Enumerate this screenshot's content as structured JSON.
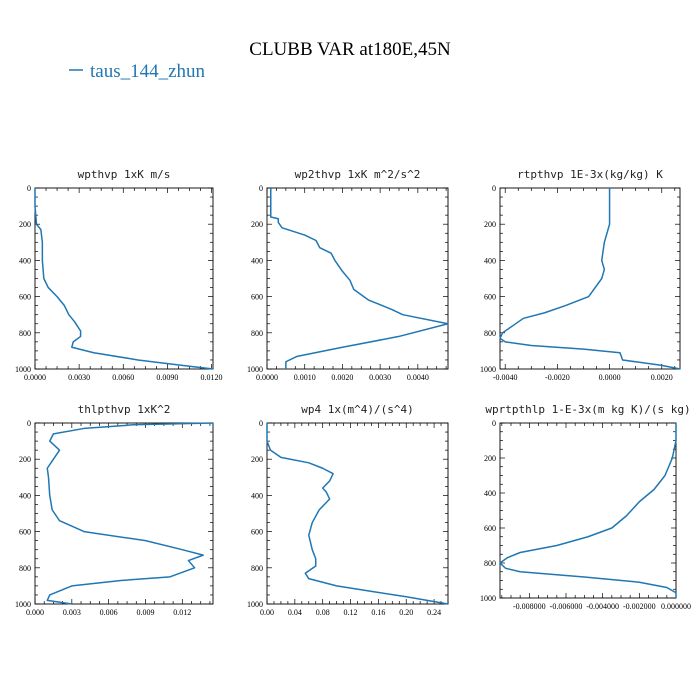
{
  "figure": {
    "title": "CLUBB VAR at180E,45N",
    "legend": {
      "label": "taus_144_zhun",
      "color": "#1f77b4"
    }
  },
  "chart_data": [
    {
      "type": "line",
      "title": "wpthvp  1xK m/s",
      "xlim": [
        0,
        0.0121
      ],
      "ylim": [
        1000,
        0
      ],
      "xticks": [
        "0.0000",
        "0.0030",
        "0.0060",
        "0.0090",
        "0.0120"
      ],
      "xtick_values": [
        0,
        0.003,
        0.006,
        0.009,
        0.012
      ],
      "yticks": [
        "0",
        "200",
        "400",
        "600",
        "800",
        "1000"
      ],
      "ytick_values": [
        0,
        200,
        400,
        600,
        800,
        1000
      ],
      "series": [
        {
          "values": [
            [
              0.0,
              0
            ],
            [
              0.0,
              100
            ],
            [
              0.0001,
              200
            ],
            [
              0.0004,
              230
            ],
            [
              0.0005,
              300
            ],
            [
              0.0005,
              400
            ],
            [
              0.0006,
              500
            ],
            [
              0.0009,
              550
            ],
            [
              0.0015,
              600
            ],
            [
              0.002,
              650
            ],
            [
              0.0023,
              700
            ],
            [
              0.0027,
              740
            ],
            [
              0.0031,
              790
            ],
            [
              0.0031,
              820
            ],
            [
              0.0026,
              850
            ],
            [
              0.0025,
              880
            ],
            [
              0.004,
              910
            ],
            [
              0.007,
              950
            ],
            [
              0.01,
              980
            ],
            [
              0.0121,
              1000
            ]
          ]
        }
      ]
    },
    {
      "type": "line",
      "title": "wp2thvp  1xK m^2/s^2",
      "xlim": [
        0,
        0.0048
      ],
      "ylim": [
        1000,
        0
      ],
      "xticks": [
        "0.0000",
        "0.0010",
        "0.0020",
        "0.0030",
        "0.0040"
      ],
      "xtick_values": [
        0,
        0.001,
        0.002,
        0.003,
        0.004
      ],
      "yticks": [
        "0",
        "200",
        "400",
        "600",
        "800",
        "1000"
      ],
      "ytick_values": [
        0,
        200,
        400,
        600,
        800,
        1000
      ],
      "series": [
        {
          "values": [
            [
              0.0001,
              0
            ],
            [
              0.0001,
              100
            ],
            [
              0.0001,
              160
            ],
            [
              0.0003,
              170
            ],
            [
              0.0003,
              190
            ],
            [
              0.0004,
              220
            ],
            [
              0.001,
              260
            ],
            [
              0.0013,
              290
            ],
            [
              0.0014,
              330
            ],
            [
              0.0017,
              360
            ],
            [
              0.0018,
              400
            ],
            [
              0.002,
              460
            ],
            [
              0.0022,
              510
            ],
            [
              0.0023,
              560
            ],
            [
              0.0027,
              620
            ],
            [
              0.0033,
              670
            ],
            [
              0.0036,
              700
            ],
            [
              0.0048,
              750
            ],
            [
              0.0035,
              820
            ],
            [
              0.002,
              880
            ],
            [
              0.0008,
              930
            ],
            [
              0.0005,
              960
            ],
            [
              0.0005,
              1000
            ]
          ]
        }
      ]
    },
    {
      "type": "line",
      "title": "rtpthvp  1E-3x(kg/kg) K",
      "xlim": [
        -0.0042,
        0.0027
      ],
      "ylim": [
        1000,
        0
      ],
      "xticks": [
        "-0.0040",
        "-0.0020",
        "0.0000",
        "0.0020"
      ],
      "xtick_values": [
        -0.004,
        -0.002,
        0.0,
        0.002
      ],
      "yticks": [
        "0",
        "200",
        "400",
        "600",
        "800",
        "1000"
      ],
      "ytick_values": [
        0,
        200,
        400,
        600,
        800,
        1000
      ],
      "series": [
        {
          "values": [
            [
              0.0,
              0
            ],
            [
              0.0,
              100
            ],
            [
              0.0,
              200
            ],
            [
              -0.0002,
              300
            ],
            [
              -0.0003,
              400
            ],
            [
              -0.0002,
              450
            ],
            [
              -0.0003,
              500
            ],
            [
              -0.0008,
              600
            ],
            [
              -0.0017,
              650
            ],
            [
              -0.0025,
              690
            ],
            [
              -0.0033,
              720
            ],
            [
              -0.0037,
              760
            ],
            [
              -0.0041,
              800
            ],
            [
              -0.0042,
              830
            ],
            [
              -0.004,
              850
            ],
            [
              -0.003,
              870
            ],
            [
              -0.001,
              890
            ],
            [
              0.0004,
              910
            ],
            [
              0.0005,
              950
            ],
            [
              0.002,
              980
            ],
            [
              0.0027,
              1000
            ]
          ]
        }
      ]
    },
    {
      "type": "line",
      "title": "thlpthvp  1xK^2",
      "xlim": [
        0,
        0.0145
      ],
      "ylim": [
        1000,
        0
      ],
      "xticks": [
        "0.000",
        "0.003",
        "0.006",
        "0.009",
        "0.012"
      ],
      "xtick_values": [
        0,
        0.003,
        0.006,
        0.009,
        0.012
      ],
      "yticks": [
        "0",
        "200",
        "400",
        "600",
        "800",
        "1000"
      ],
      "ytick_values": [
        0,
        200,
        400,
        600,
        800,
        1000
      ],
      "series": [
        {
          "values": [
            [
              0.0145,
              0
            ],
            [
              0.008,
              10
            ],
            [
              0.004,
              30
            ],
            [
              0.0015,
              60
            ],
            [
              0.0012,
              100
            ],
            [
              0.002,
              150
            ],
            [
              0.0015,
              200
            ],
            [
              0.001,
              250
            ],
            [
              0.0011,
              300
            ],
            [
              0.0012,
              400
            ],
            [
              0.0014,
              480
            ],
            [
              0.002,
              540
            ],
            [
              0.004,
              600
            ],
            [
              0.009,
              650
            ],
            [
              0.012,
              700
            ],
            [
              0.0137,
              730
            ],
            [
              0.0125,
              760
            ],
            [
              0.013,
              800
            ],
            [
              0.011,
              850
            ],
            [
              0.007,
              870
            ],
            [
              0.003,
              900
            ],
            [
              0.0012,
              950
            ],
            [
              0.001,
              980
            ],
            [
              0.003,
              1000
            ]
          ]
        }
      ]
    },
    {
      "type": "line",
      "title": "wp4  1x(m^4)/(s^4)",
      "xlim": [
        0,
        0.26
      ],
      "ylim": [
        1000,
        0
      ],
      "xticks": [
        "0.00",
        "0.04",
        "0.08",
        "0.12",
        "0.16",
        "0.20",
        "0.24"
      ],
      "xtick_values": [
        0,
        0.04,
        0.08,
        0.12,
        0.16,
        0.2,
        0.24
      ],
      "yticks": [
        "0",
        "200",
        "400",
        "600",
        "800",
        "1000"
      ],
      "ytick_values": [
        0,
        200,
        400,
        600,
        800,
        1000
      ],
      "series": [
        {
          "values": [
            [
              0.0,
              0
            ],
            [
              0.0,
              100
            ],
            [
              0.005,
              150
            ],
            [
              0.02,
              190
            ],
            [
              0.06,
              220
            ],
            [
              0.08,
              250
            ],
            [
              0.095,
              280
            ],
            [
              0.09,
              320
            ],
            [
              0.08,
              360
            ],
            [
              0.085,
              380
            ],
            [
              0.09,
              420
            ],
            [
              0.075,
              480
            ],
            [
              0.065,
              550
            ],
            [
              0.06,
              620
            ],
            [
              0.065,
              700
            ],
            [
              0.07,
              750
            ],
            [
              0.07,
              790
            ],
            [
              0.055,
              830
            ],
            [
              0.06,
              860
            ],
            [
              0.1,
              900
            ],
            [
              0.15,
              930
            ],
            [
              0.2,
              960
            ],
            [
              0.26,
              1000
            ]
          ]
        }
      ]
    },
    {
      "type": "line",
      "title": "wprtpthlp  1-E-3x(m kg K)/(s kg)",
      "xlim": [
        -0.0096,
        0.0
      ],
      "ylim": [
        1000,
        0
      ],
      "xticks": [
        "-0.008000",
        "-0.006000",
        "-0.004000",
        "-0.002000",
        "0.000000"
      ],
      "xtick_values": [
        -0.008,
        -0.006,
        -0.004,
        -0.002,
        0.0
      ],
      "yticks": [
        "0",
        "200",
        "400",
        "600",
        "800",
        "1000"
      ],
      "ytick_values": [
        0,
        200,
        400,
        600,
        800,
        1000
      ],
      "series": [
        {
          "values": [
            [
              0.0,
              0
            ],
            [
              0.0,
              100
            ],
            [
              -0.0002,
              200
            ],
            [
              -0.0006,
              300
            ],
            [
              -0.0012,
              380
            ],
            [
              -0.002,
              450
            ],
            [
              -0.0027,
              530
            ],
            [
              -0.0035,
              600
            ],
            [
              -0.0048,
              650
            ],
            [
              -0.0065,
              700
            ],
            [
              -0.0085,
              740
            ],
            [
              -0.0092,
              770
            ],
            [
              -0.0096,
              800
            ],
            [
              -0.0093,
              830
            ],
            [
              -0.0085,
              850
            ],
            [
              -0.005,
              880
            ],
            [
              -0.002,
              910
            ],
            [
              -0.0005,
              940
            ],
            [
              0.0,
              970
            ],
            [
              0.0,
              1000
            ]
          ]
        }
      ]
    }
  ]
}
